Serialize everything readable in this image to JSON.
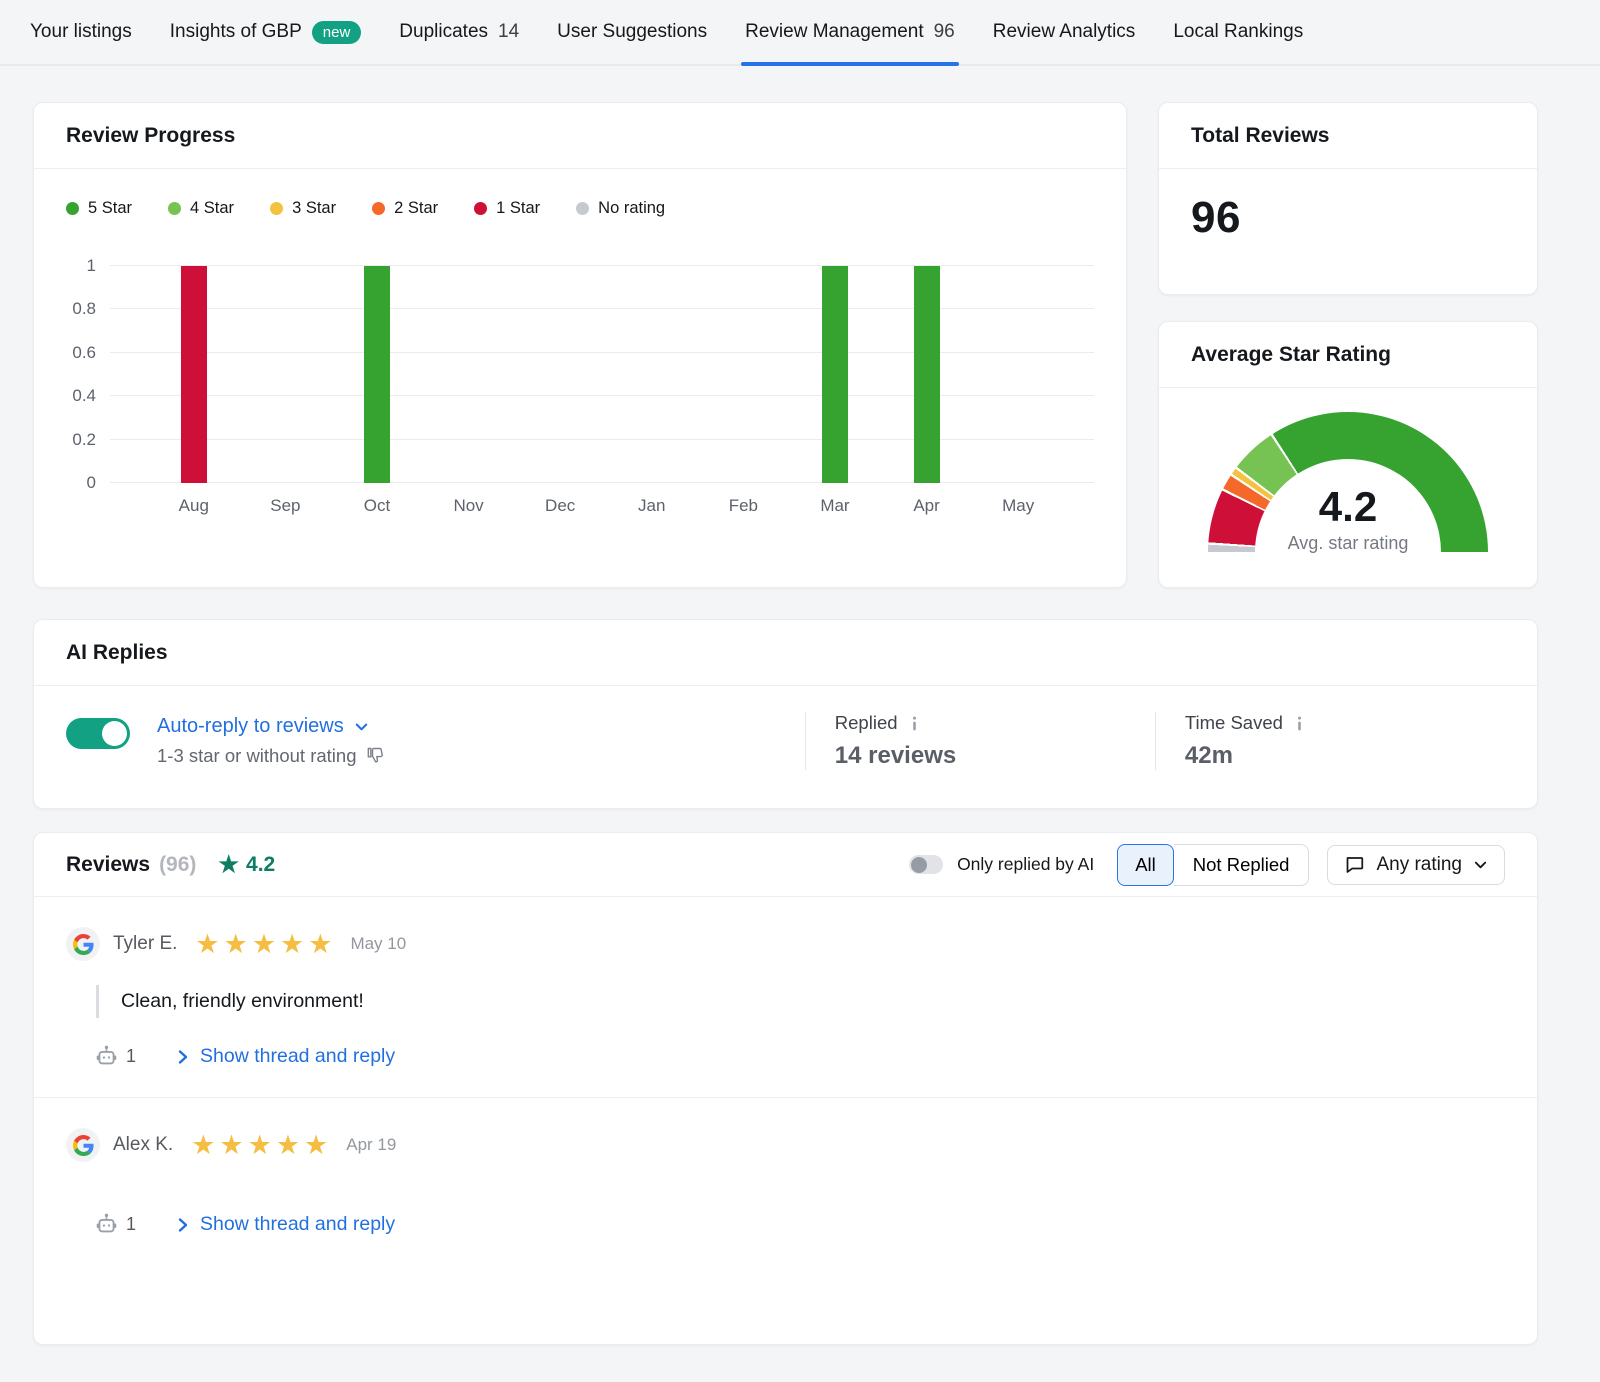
{
  "nav": {
    "tabs": [
      {
        "label": "Your listings"
      },
      {
        "label": "Insights of GBP",
        "badge": "new"
      },
      {
        "label": "Duplicates",
        "count": "14"
      },
      {
        "label": "User Suggestions"
      },
      {
        "label": "Review Management",
        "count": "96",
        "active": true
      },
      {
        "label": "Review Analytics"
      },
      {
        "label": "Local Rankings"
      }
    ]
  },
  "review_progress": {
    "title": "Review Progress",
    "legend": [
      {
        "label": "5 Star",
        "color": "#36a331"
      },
      {
        "label": "4 Star",
        "color": "#76c353"
      },
      {
        "label": "3 Star",
        "color": "#f3c23e"
      },
      {
        "label": "2 Star",
        "color": "#f4682a"
      },
      {
        "label": "1 Star",
        "color": "#ce1038"
      },
      {
        "label": "No rating",
        "color": "#c6cad0"
      }
    ]
  },
  "chart_data": {
    "type": "bar",
    "categories": [
      "Aug",
      "Sep",
      "Oct",
      "Nov",
      "Dec",
      "Jan",
      "Feb",
      "Mar",
      "Apr",
      "May"
    ],
    "series": [
      {
        "name": "5 Star",
        "color": "#36a331",
        "values": [
          0,
          0,
          1,
          0,
          0,
          0,
          0,
          1,
          1,
          0
        ]
      },
      {
        "name": "1 Star",
        "color": "#ce1038",
        "values": [
          1,
          0,
          0,
          0,
          0,
          0,
          0,
          0,
          0,
          0
        ]
      }
    ],
    "title": "Review Progress",
    "xlabel": "",
    "ylabel": "",
    "ylim": [
      0,
      1
    ],
    "yticks": [
      0,
      0.2,
      0.4,
      0.6,
      0.8,
      1
    ],
    "grid": true,
    "legend_position": "top"
  },
  "total_reviews": {
    "title": "Total Reviews",
    "value": "96"
  },
  "avg_rating": {
    "title": "Average Star Rating",
    "value": "4.2",
    "caption": "Avg. star rating",
    "gauge_segments": [
      {
        "name": "no-rating",
        "color": "#c6cad0",
        "deg": 3
      },
      {
        "name": "1-star",
        "color": "#ce1038",
        "deg": 22
      },
      {
        "name": "2-star",
        "color": "#f4682a",
        "deg": 6
      },
      {
        "name": "3-star",
        "color": "#f3c23e",
        "deg": 2.5
      },
      {
        "name": "4-star",
        "color": "#76c353",
        "deg": 19
      },
      {
        "name": "5-star",
        "color": "#36a331",
        "deg": 122.5
      }
    ]
  },
  "ai_replies": {
    "title": "AI Replies",
    "toggle_on": true,
    "auto_reply_label": "Auto-reply to reviews",
    "auto_reply_sub": "1-3 star or without rating",
    "stats": [
      {
        "label": "Replied",
        "value": "14 reviews"
      },
      {
        "label": "Time Saved",
        "value": "42m"
      }
    ]
  },
  "reviews": {
    "title": "Reviews",
    "count": "(96)",
    "rating": "4.2",
    "star_glyph": "★",
    "filter_toggle_label": "Only replied by AI",
    "segments": {
      "all": "All",
      "not_replied": "Not Replied"
    },
    "rating_filter": "Any rating",
    "items": [
      {
        "name": "Tyler E.",
        "stars": 5,
        "date": "May 10",
        "quote": "Clean, friendly environment!",
        "ai_count": "1",
        "action": "Show thread and reply"
      },
      {
        "name": "Alex K.",
        "stars": 5,
        "date": "Apr 19",
        "quote": "",
        "ai_count": "1",
        "action": "Show thread and reply"
      }
    ]
  },
  "colors": {
    "accent_blue": "#2472e8",
    "teal": "#12a182",
    "rating_green": "#0e7d62",
    "star_yellow": "#f5bd41"
  }
}
